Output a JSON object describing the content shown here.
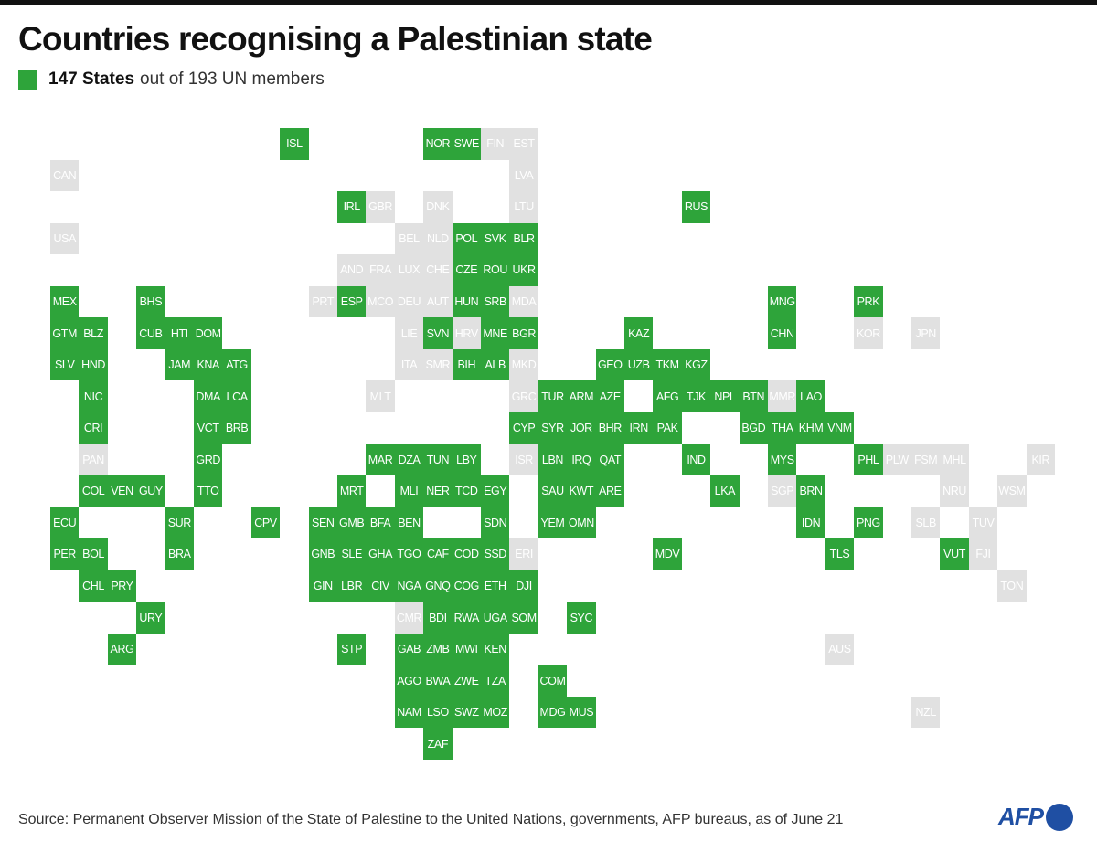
{
  "title": "Countries recognising a Palestinian state",
  "legend": {
    "count_label": "147 States",
    "rest_label": "out of 193 UN members"
  },
  "colors": {
    "recognised": "#2ea43a",
    "not_recognised": "#e1e1e1"
  },
  "source": "Source: Permanent Observer Mission of the State of Palestine to the United Nations, governments, AFP bureaus, as of June 21",
  "logo": "AFP",
  "countries": [
    {
      "code": "ISL",
      "recognised": true
    },
    {
      "code": "NOR",
      "recognised": true
    },
    {
      "code": "SWE",
      "recognised": true
    },
    {
      "code": "FIN",
      "recognised": false
    },
    {
      "code": "EST",
      "recognised": false
    },
    {
      "code": "CAN",
      "recognised": false
    },
    {
      "code": "LVA",
      "recognised": false
    },
    {
      "code": "IRL",
      "recognised": true
    },
    {
      "code": "GBR",
      "recognised": false
    },
    {
      "code": "DNK",
      "recognised": false
    },
    {
      "code": "LTU",
      "recognised": false
    },
    {
      "code": "RUS",
      "recognised": true
    },
    {
      "code": "USA",
      "recognised": false
    },
    {
      "code": "BEL",
      "recognised": false
    },
    {
      "code": "NLD",
      "recognised": false
    },
    {
      "code": "POL",
      "recognised": true
    },
    {
      "code": "SVK",
      "recognised": true
    },
    {
      "code": "BLR",
      "recognised": true
    },
    {
      "code": "AND",
      "recognised": false
    },
    {
      "code": "FRA",
      "recognised": false
    },
    {
      "code": "LUX",
      "recognised": false
    },
    {
      "code": "CHE",
      "recognised": false
    },
    {
      "code": "CZE",
      "recognised": true
    },
    {
      "code": "ROU",
      "recognised": true
    },
    {
      "code": "UKR",
      "recognised": true
    },
    {
      "code": "MEX",
      "recognised": true
    },
    {
      "code": "BHS",
      "recognised": true
    },
    {
      "code": "PRT",
      "recognised": false
    },
    {
      "code": "ESP",
      "recognised": true
    },
    {
      "code": "MCO",
      "recognised": false
    },
    {
      "code": "DEU",
      "recognised": false
    },
    {
      "code": "AUT",
      "recognised": false
    },
    {
      "code": "HUN",
      "recognised": true
    },
    {
      "code": "SRB",
      "recognised": true
    },
    {
      "code": "MDA",
      "recognised": false
    },
    {
      "code": "MNG",
      "recognised": true
    },
    {
      "code": "PRK",
      "recognised": true
    },
    {
      "code": "GTM",
      "recognised": true
    },
    {
      "code": "BLZ",
      "recognised": true
    },
    {
      "code": "CUB",
      "recognised": true
    },
    {
      "code": "HTI",
      "recognised": true
    },
    {
      "code": "DOM",
      "recognised": true
    },
    {
      "code": "LIE",
      "recognised": false
    },
    {
      "code": "SVN",
      "recognised": true
    },
    {
      "code": "HRV",
      "recognised": false
    },
    {
      "code": "MNE",
      "recognised": true
    },
    {
      "code": "BGR",
      "recognised": true
    },
    {
      "code": "KAZ",
      "recognised": true
    },
    {
      "code": "CHN",
      "recognised": true
    },
    {
      "code": "KOR",
      "recognised": false
    },
    {
      "code": "JPN",
      "recognised": false
    },
    {
      "code": "SLV",
      "recognised": true
    },
    {
      "code": "HND",
      "recognised": true
    },
    {
      "code": "JAM",
      "recognised": true
    },
    {
      "code": "KNA",
      "recognised": true
    },
    {
      "code": "ATG",
      "recognised": true
    },
    {
      "code": "ITA",
      "recognised": false
    },
    {
      "code": "SMR",
      "recognised": false
    },
    {
      "code": "BIH",
      "recognised": true
    },
    {
      "code": "ALB",
      "recognised": true
    },
    {
      "code": "MKD",
      "recognised": false
    },
    {
      "code": "GEO",
      "recognised": true
    },
    {
      "code": "UZB",
      "recognised": true
    },
    {
      "code": "TKM",
      "recognised": true
    },
    {
      "code": "KGZ",
      "recognised": true
    },
    {
      "code": "NIC",
      "recognised": true
    },
    {
      "code": "DMA",
      "recognised": true
    },
    {
      "code": "LCA",
      "recognised": true
    },
    {
      "code": "MLT",
      "recognised": false
    },
    {
      "code": "GRC",
      "recognised": false
    },
    {
      "code": "TUR",
      "recognised": true
    },
    {
      "code": "ARM",
      "recognised": true
    },
    {
      "code": "AZE",
      "recognised": true
    },
    {
      "code": "AFG",
      "recognised": true
    },
    {
      "code": "TJK",
      "recognised": true
    },
    {
      "code": "NPL",
      "recognised": true
    },
    {
      "code": "BTN",
      "recognised": true
    },
    {
      "code": "MMR",
      "recognised": false
    },
    {
      "code": "LAO",
      "recognised": true
    },
    {
      "code": "CRI",
      "recognised": true
    },
    {
      "code": "VCT",
      "recognised": true
    },
    {
      "code": "BRB",
      "recognised": true
    },
    {
      "code": "CYP",
      "recognised": true
    },
    {
      "code": "SYR",
      "recognised": true
    },
    {
      "code": "JOR",
      "recognised": true
    },
    {
      "code": "BHR",
      "recognised": true
    },
    {
      "code": "IRN",
      "recognised": true
    },
    {
      "code": "PAK",
      "recognised": true
    },
    {
      "code": "BGD",
      "recognised": true
    },
    {
      "code": "THA",
      "recognised": true
    },
    {
      "code": "KHM",
      "recognised": true
    },
    {
      "code": "VNM",
      "recognised": true
    },
    {
      "code": "PAN",
      "recognised": false
    },
    {
      "code": "GRD",
      "recognised": true
    },
    {
      "code": "MAR",
      "recognised": true
    },
    {
      "code": "DZA",
      "recognised": true
    },
    {
      "code": "TUN",
      "recognised": true
    },
    {
      "code": "LBY",
      "recognised": true
    },
    {
      "code": "ISR",
      "recognised": false
    },
    {
      "code": "LBN",
      "recognised": true
    },
    {
      "code": "IRQ",
      "recognised": true
    },
    {
      "code": "QAT",
      "recognised": true
    },
    {
      "code": "IND",
      "recognised": true
    },
    {
      "code": "MYS",
      "recognised": true
    },
    {
      "code": "PHL",
      "recognised": true
    },
    {
      "code": "PLW",
      "recognised": false
    },
    {
      "code": "FSM",
      "recognised": false
    },
    {
      "code": "MHL",
      "recognised": false
    },
    {
      "code": "KIR",
      "recognised": false
    },
    {
      "code": "COL",
      "recognised": true
    },
    {
      "code": "VEN",
      "recognised": true
    },
    {
      "code": "GUY",
      "recognised": true
    },
    {
      "code": "TTO",
      "recognised": true
    },
    {
      "code": "MRT",
      "recognised": true
    },
    {
      "code": "MLI",
      "recognised": true
    },
    {
      "code": "NER",
      "recognised": true
    },
    {
      "code": "TCD",
      "recognised": true
    },
    {
      "code": "EGY",
      "recognised": true
    },
    {
      "code": "SAU",
      "recognised": true
    },
    {
      "code": "KWT",
      "recognised": true
    },
    {
      "code": "ARE",
      "recognised": true
    },
    {
      "code": "LKA",
      "recognised": true
    },
    {
      "code": "SGP",
      "recognised": false
    },
    {
      "code": "BRN",
      "recognised": true
    },
    {
      "code": "NRU",
      "recognised": false
    },
    {
      "code": "WSM",
      "recognised": false
    },
    {
      "code": "ECU",
      "recognised": true
    },
    {
      "code": "SUR",
      "recognised": true
    },
    {
      "code": "CPV",
      "recognised": true
    },
    {
      "code": "SEN",
      "recognised": true
    },
    {
      "code": "GMB",
      "recognised": true
    },
    {
      "code": "BFA",
      "recognised": true
    },
    {
      "code": "BEN",
      "recognised": true
    },
    {
      "code": "SDN",
      "recognised": true
    },
    {
      "code": "YEM",
      "recognised": true
    },
    {
      "code": "OMN",
      "recognised": true
    },
    {
      "code": "IDN",
      "recognised": true
    },
    {
      "code": "PNG",
      "recognised": true
    },
    {
      "code": "SLB",
      "recognised": false
    },
    {
      "code": "TUV",
      "recognised": false
    },
    {
      "code": "PER",
      "recognised": true
    },
    {
      "code": "BOL",
      "recognised": true
    },
    {
      "code": "BRA",
      "recognised": true
    },
    {
      "code": "GNB",
      "recognised": true
    },
    {
      "code": "SLE",
      "recognised": true
    },
    {
      "code": "GHA",
      "recognised": true
    },
    {
      "code": "TGO",
      "recognised": true
    },
    {
      "code": "CAF",
      "recognised": true
    },
    {
      "code": "COD",
      "recognised": true
    },
    {
      "code": "SSD",
      "recognised": true
    },
    {
      "code": "ERI",
      "recognised": false
    },
    {
      "code": "MDV",
      "recognised": true
    },
    {
      "code": "TLS",
      "recognised": true
    },
    {
      "code": "VUT",
      "recognised": true
    },
    {
      "code": "FJI",
      "recognised": false
    },
    {
      "code": "CHL",
      "recognised": true
    },
    {
      "code": "PRY",
      "recognised": true
    },
    {
      "code": "GIN",
      "recognised": true
    },
    {
      "code": "LBR",
      "recognised": true
    },
    {
      "code": "CIV",
      "recognised": true
    },
    {
      "code": "NGA",
      "recognised": true
    },
    {
      "code": "GNQ",
      "recognised": true
    },
    {
      "code": "COG",
      "recognised": true
    },
    {
      "code": "ETH",
      "recognised": true
    },
    {
      "code": "DJI",
      "recognised": true
    },
    {
      "code": "TON",
      "recognised": false
    },
    {
      "code": "URY",
      "recognised": true
    },
    {
      "code": "CMR",
      "recognised": false
    },
    {
      "code": "BDI",
      "recognised": true
    },
    {
      "code": "RWA",
      "recognised": true
    },
    {
      "code": "UGA",
      "recognised": true
    },
    {
      "code": "SOM",
      "recognised": true
    },
    {
      "code": "SYC",
      "recognised": true
    },
    {
      "code": "ARG",
      "recognised": true
    },
    {
      "code": "STP",
      "recognised": true
    },
    {
      "code": "GAB",
      "recognised": true
    },
    {
      "code": "ZMB",
      "recognised": true
    },
    {
      "code": "MWI",
      "recognised": true
    },
    {
      "code": "KEN",
      "recognised": true
    },
    {
      "code": "AUS",
      "recognised": false
    },
    {
      "code": "AGO",
      "recognised": true
    },
    {
      "code": "BWA",
      "recognised": true
    },
    {
      "code": "ZWE",
      "recognised": true
    },
    {
      "code": "TZA",
      "recognised": true
    },
    {
      "code": "COM",
      "recognised": true
    },
    {
      "code": "NAM",
      "recognised": true
    },
    {
      "code": "LSO",
      "recognised": true
    },
    {
      "code": "SWZ",
      "recognised": true
    },
    {
      "code": "MOZ",
      "recognised": true
    },
    {
      "code": "MDG",
      "recognised": true
    },
    {
      "code": "MUS",
      "recognised": true
    },
    {
      "code": "NZL",
      "recognised": false
    },
    {
      "code": "ZAF",
      "recognised": true
    }
  ]
}
